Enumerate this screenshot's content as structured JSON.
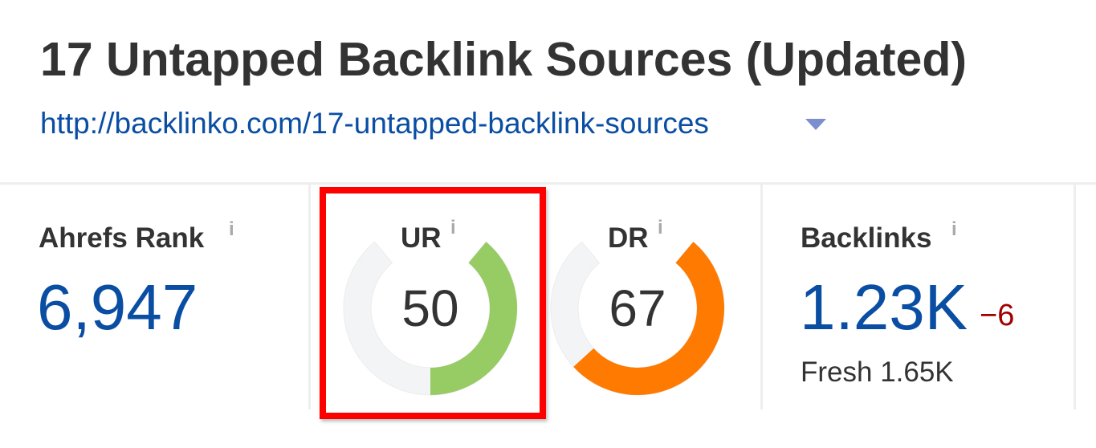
{
  "header": {
    "title": "17 Untapped Backlink Sources (Updated)",
    "url": "http://backlinko.com/17-untapped-backlink-sources",
    "dropdown_icon": "caret-down-icon"
  },
  "metrics": {
    "ahrefs_rank": {
      "label": "Ahrefs Rank",
      "info": "i",
      "value": "6,947"
    },
    "ur": {
      "label": "UR",
      "info": "i",
      "value": "50",
      "score": 50,
      "color": "#97cb63"
    },
    "dr": {
      "label": "DR",
      "info": "i",
      "value": "67",
      "score": 67,
      "color": "#ff7a00"
    },
    "backlinks": {
      "label": "Backlinks",
      "info": "i",
      "value": "1.23K",
      "change": "−6",
      "fresh": "Fresh 1.65K"
    }
  },
  "colors": {
    "link": "#0a4ea3",
    "gauge_track": "#f3f4f5",
    "highlight": "#ff0000",
    "negative": "#a00000"
  }
}
